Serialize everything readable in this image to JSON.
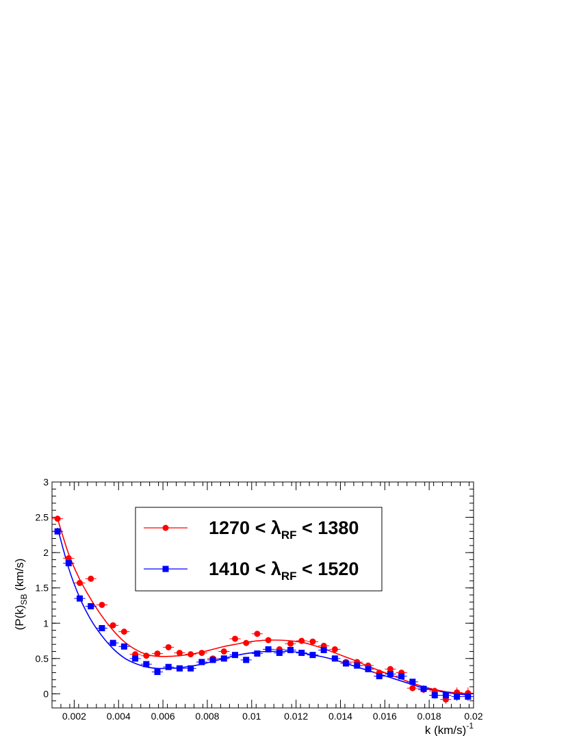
{
  "chart_data": {
    "type": "scatter",
    "xlabel_base": "k  (km/s)",
    "xlabel_sup": "-1",
    "ylabel_base": "(P(k)",
    "ylabel_sub": "SB",
    "ylabel_tail": "  (km/s)",
    "xlim": [
      0.001,
      0.02
    ],
    "ylim": [
      -0.2,
      3.0
    ],
    "x_ticks": [
      {
        "value": 0.002,
        "label": "0.002"
      },
      {
        "value": 0.004,
        "label": "0.004"
      },
      {
        "value": 0.006,
        "label": "0.006"
      },
      {
        "value": 0.008,
        "label": "0.008"
      },
      {
        "value": 0.01,
        "label": "0.01"
      },
      {
        "value": 0.012,
        "label": "0.012"
      },
      {
        "value": 0.014,
        "label": "0.014"
      },
      {
        "value": 0.016,
        "label": "0.016"
      },
      {
        "value": 0.018,
        "label": "0.018"
      },
      {
        "value": 0.02,
        "label": "0.02"
      }
    ],
    "y_ticks": [
      {
        "value": 0,
        "label": "0"
      },
      {
        "value": 0.5,
        "label": "0.5"
      },
      {
        "value": 1,
        "label": "1"
      },
      {
        "value": 1.5,
        "label": "1.5"
      },
      {
        "value": 2,
        "label": "2"
      },
      {
        "value": 2.5,
        "label": "2.5"
      },
      {
        "value": 3,
        "label": "3"
      }
    ],
    "legend_position": "top-center",
    "series": [
      {
        "legend_pre": "1270 < λ",
        "legend_sub": "RF",
        "legend_post": " < 1380",
        "color": "#ff0000",
        "marker": "circle",
        "x": [
          0.00125,
          0.00175,
          0.00225,
          0.00275,
          0.00325,
          0.00375,
          0.00425,
          0.00475,
          0.00525,
          0.00575,
          0.00625,
          0.00675,
          0.00725,
          0.00775,
          0.00825,
          0.00875,
          0.00925,
          0.00975,
          0.01025,
          0.01075,
          0.01125,
          0.01175,
          0.01225,
          0.01275,
          0.01325,
          0.01375,
          0.01425,
          0.01475,
          0.01525,
          0.01575,
          0.01625,
          0.01675,
          0.01725,
          0.01775,
          0.01825,
          0.01875,
          0.01925,
          0.01975
        ],
        "y": [
          2.48,
          1.92,
          1.57,
          1.63,
          1.26,
          0.97,
          0.88,
          0.56,
          0.54,
          0.57,
          0.66,
          0.58,
          0.56,
          0.58,
          0.5,
          0.6,
          0.78,
          0.72,
          0.85,
          0.76,
          0.63,
          0.71,
          0.75,
          0.74,
          0.68,
          0.63,
          0.45,
          0.45,
          0.4,
          0.3,
          0.35,
          0.3,
          0.08,
          0.06,
          0.04,
          -0.08,
          0.02,
          0.01
        ],
        "yerr": [
          0.03,
          0.03,
          0.03,
          0.03,
          0.03,
          0.03,
          0.03,
          0.03,
          0.03,
          0.03,
          0.03,
          0.03,
          0.03,
          0.03,
          0.03,
          0.03,
          0.03,
          0.03,
          0.03,
          0.03,
          0.03,
          0.03,
          0.03,
          0.03,
          0.03,
          0.03,
          0.03,
          0.03,
          0.03,
          0.03,
          0.04,
          0.04,
          0.04,
          0.05,
          0.05,
          0.06,
          0.07,
          0.08
        ],
        "fit_y": [
          2.48,
          1.98,
          1.62,
          1.34,
          1.1,
          0.9,
          0.74,
          0.63,
          0.56,
          0.53,
          0.53,
          0.54,
          0.56,
          0.59,
          0.63,
          0.67,
          0.7,
          0.73,
          0.75,
          0.76,
          0.76,
          0.75,
          0.73,
          0.69,
          0.64,
          0.58,
          0.52,
          0.46,
          0.39,
          0.33,
          0.27,
          0.21,
          0.15,
          0.1,
          0.06,
          0.03,
          0.01,
          0.0
        ]
      },
      {
        "legend_pre": "1410 < λ",
        "legend_sub": "RF",
        "legend_post": " < 1520",
        "color": "#0000ff",
        "marker": "square",
        "x": [
          0.00125,
          0.00175,
          0.00225,
          0.00275,
          0.00325,
          0.00375,
          0.00425,
          0.00475,
          0.00525,
          0.00575,
          0.00625,
          0.00675,
          0.00725,
          0.00775,
          0.00825,
          0.00875,
          0.00925,
          0.00975,
          0.01025,
          0.01075,
          0.01125,
          0.01175,
          0.01225,
          0.01275,
          0.01325,
          0.01375,
          0.01425,
          0.01475,
          0.01525,
          0.01575,
          0.01625,
          0.01675,
          0.01725,
          0.01775,
          0.01825,
          0.01875,
          0.01925,
          0.01975
        ],
        "y": [
          2.3,
          1.85,
          1.35,
          1.24,
          0.93,
          0.72,
          0.67,
          0.5,
          0.42,
          0.31,
          0.38,
          0.36,
          0.36,
          0.45,
          0.48,
          0.5,
          0.55,
          0.48,
          0.57,
          0.63,
          0.58,
          0.62,
          0.58,
          0.55,
          0.62,
          0.5,
          0.43,
          0.4,
          0.35,
          0.25,
          0.28,
          0.25,
          0.17,
          0.07,
          -0.02,
          -0.02,
          -0.04,
          -0.04
        ],
        "yerr": [
          0.03,
          0.03,
          0.03,
          0.03,
          0.03,
          0.03,
          0.03,
          0.03,
          0.03,
          0.03,
          0.03,
          0.03,
          0.03,
          0.03,
          0.03,
          0.03,
          0.03,
          0.03,
          0.03,
          0.03,
          0.03,
          0.03,
          0.03,
          0.03,
          0.03,
          0.03,
          0.03,
          0.03,
          0.03,
          0.03,
          0.04,
          0.04,
          0.04,
          0.05,
          0.05,
          0.05,
          0.06,
          0.06
        ],
        "fit_y": [
          2.35,
          1.78,
          1.36,
          1.05,
          0.82,
          0.64,
          0.51,
          0.43,
          0.38,
          0.36,
          0.36,
          0.37,
          0.39,
          0.42,
          0.46,
          0.5,
          0.54,
          0.57,
          0.59,
          0.6,
          0.6,
          0.6,
          0.58,
          0.55,
          0.52,
          0.48,
          0.43,
          0.38,
          0.33,
          0.28,
          0.23,
          0.18,
          0.13,
          0.08,
          0.05,
          0.02,
          0.0,
          -0.02
        ]
      }
    ]
  }
}
